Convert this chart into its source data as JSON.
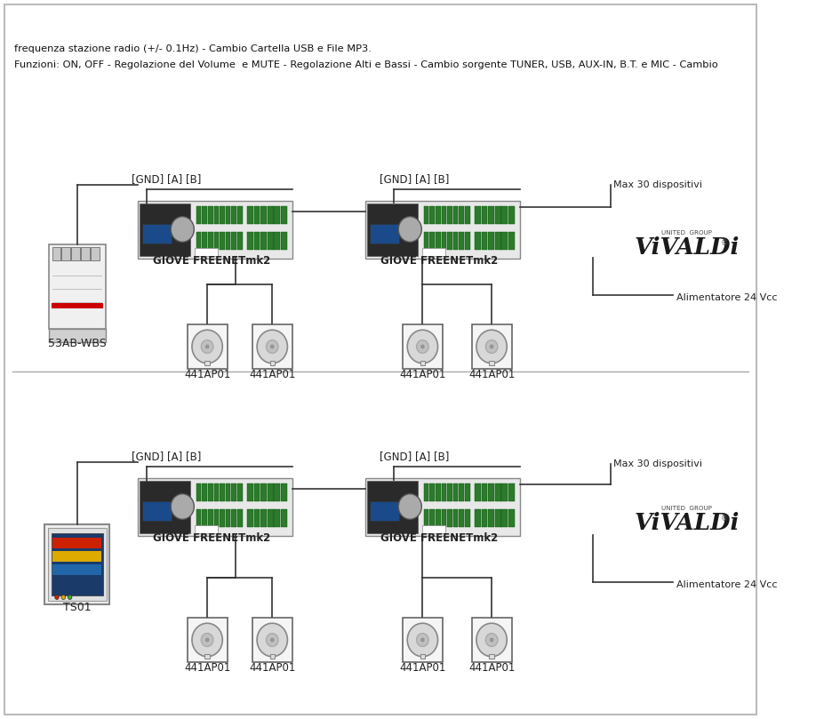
{
  "bg_color": "#ffffff",
  "border_color": "#cccccc",
  "line_color": "#333333",
  "fig_width": 9.36,
  "fig_height": 8.09,
  "dpi": 100,
  "footer_text1": "Funzioni: ON, OFF - Regolazione del Volume  e MUTE - Regolazione Alti e Bassi - Cambio sorgente TUNER, USB, AUX-IN, B.T. e MIC - Cambio",
  "footer_text2": "frequenza stazione radio (+/- 0.1Hz) - Cambio Cartella USB e File MP3.",
  "section1": {
    "label_device": "TS01",
    "label_controller1": "GIOVE FREENETmk2",
    "label_controller2": "GIOVE FREENETmk2",
    "label_speakers": [
      "441AP01",
      "441AP01",
      "441AP01",
      "441AP01"
    ],
    "label_gnd1": "[GND] [A] [B]",
    "label_gnd2": "[GND] [A] [B]",
    "label_alimentatore": "Alimentatore 24 Vcc",
    "label_max30": "Max 30 dispositivi"
  },
  "section2": {
    "label_device": "53AB-WBS",
    "label_controller1": "GIOVE FREENETmk2",
    "label_controller2": "GIOVE FREENETmk2",
    "label_speakers": [
      "441AP01",
      "441AP01",
      "441AP01",
      "441AP01"
    ],
    "label_gnd1": "[GND] [A] [B]",
    "label_gnd2": "[GND] [A] [B]",
    "label_alimentatore": "Alimentatore 24 Vcc",
    "label_max30": "Max 30 dispositivi"
  },
  "vivaldi_text": "ViVALDi",
  "vivaldi_subtext": "UNITED  GROUP",
  "vivaldi_color": "#1a1a1a",
  "gray_box": "#e8e8e8",
  "light_gray": "#f0f0f0",
  "dark_gray": "#555555",
  "green_color": "#2d7a2d"
}
